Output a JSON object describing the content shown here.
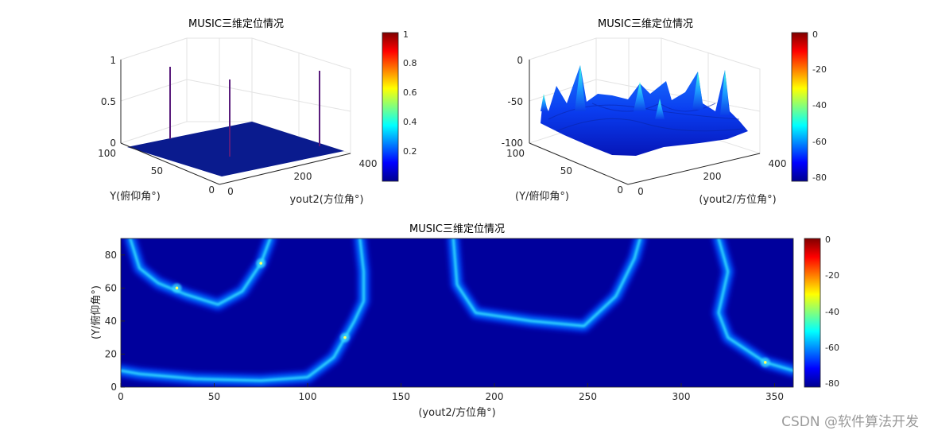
{
  "colors": {
    "jet_low": "#00008f",
    "jet_high": "#800000",
    "floor": "#0a1b8e",
    "peak_mark": "#ffff66"
  },
  "chart_data": [
    {
      "type": "surface3d",
      "title": "MUSIC三维定位情况",
      "xlabel": "yout2(方位角°)",
      "ylabel": "Y(俯仰角°)",
      "zlabel": "",
      "xticks": [
        "0",
        "200",
        "400"
      ],
      "yticks": [
        "0",
        "50",
        "100"
      ],
      "zticks": [
        "0",
        "0.5",
        "1"
      ],
      "zlim": [
        0,
        1
      ],
      "colorbar": {
        "ticks": [
          "0.2",
          "0.4",
          "0.6",
          "0.8",
          "1"
        ],
        "range": [
          0,
          1
        ]
      },
      "peaks": [
        {
          "x": 30,
          "y": 60,
          "z": 1.0
        },
        {
          "x": 75,
          "y": 75,
          "z": 1.0
        },
        {
          "x": 120,
          "y": 30,
          "z": 1.0
        },
        {
          "x": 345,
          "y": 15,
          "z": 1.0
        }
      ]
    },
    {
      "type": "surface3d",
      "title": "MUSIC三维定位情况",
      "xlabel": "(yout2/方位角°)",
      "ylabel": "(Y/俯仰角°)",
      "zlabel": "",
      "xticks": [
        "0",
        "200",
        "400"
      ],
      "yticks": [
        "0",
        "50",
        "100"
      ],
      "zticks": [
        "-100",
        "-50",
        "0"
      ],
      "zlim": [
        -100,
        0
      ],
      "colorbar": {
        "ticks": [
          "-80",
          "-60",
          "-40",
          "-20",
          "0"
        ],
        "range": [
          -85,
          0
        ]
      },
      "peaks": [
        {
          "x": 30,
          "y": 60,
          "z": 0
        },
        {
          "x": 75,
          "y": 75,
          "z": 0
        },
        {
          "x": 120,
          "y": 30,
          "z": 0
        },
        {
          "x": 345,
          "y": 15,
          "z": 0
        }
      ]
    },
    {
      "type": "heatmap",
      "title": "MUSIC三维定位情况",
      "xlabel": "(yout2/方位角°)",
      "ylabel": "(Y/俯仰角°)",
      "xlim": [
        0,
        360
      ],
      "ylim": [
        0,
        90
      ],
      "xticks": [
        "0",
        "50",
        "100",
        "150",
        "200",
        "250",
        "300",
        "350"
      ],
      "yticks": [
        "0",
        "20",
        "40",
        "60",
        "80"
      ],
      "colorbar": {
        "ticks": [
          "-80",
          "-60",
          "-40",
          "-20",
          "0"
        ],
        "range": [
          -85,
          0
        ]
      },
      "peaks": [
        {
          "x": 30,
          "y": 60
        },
        {
          "x": 75,
          "y": 75
        },
        {
          "x": 120,
          "y": 30
        },
        {
          "x": 345,
          "y": 15
        }
      ],
      "ridges": [
        [
          [
            5,
            90
          ],
          [
            10,
            72
          ],
          [
            20,
            63
          ],
          [
            35,
            56
          ],
          [
            52,
            50
          ],
          [
            65,
            58
          ],
          [
            75,
            75
          ],
          [
            80,
            90
          ]
        ],
        [
          [
            128,
            90
          ],
          [
            130,
            70
          ],
          [
            130,
            52
          ],
          [
            125,
            40
          ],
          [
            120,
            30
          ],
          [
            114,
            18
          ],
          [
            100,
            6
          ],
          [
            75,
            4
          ],
          [
            40,
            5
          ],
          [
            10,
            8
          ],
          [
            0,
            10
          ]
        ],
        [
          [
            178,
            90
          ],
          [
            180,
            62
          ],
          [
            190,
            45
          ],
          [
            220,
            40
          ],
          [
            248,
            37
          ],
          [
            265,
            55
          ],
          [
            275,
            78
          ],
          [
            278,
            90
          ]
        ],
        [
          [
            320,
            90
          ],
          [
            325,
            70
          ],
          [
            320,
            45
          ],
          [
            325,
            30
          ],
          [
            345,
            15
          ],
          [
            360,
            10
          ]
        ]
      ]
    }
  ],
  "watermark": "CSDN @软件算法开发"
}
